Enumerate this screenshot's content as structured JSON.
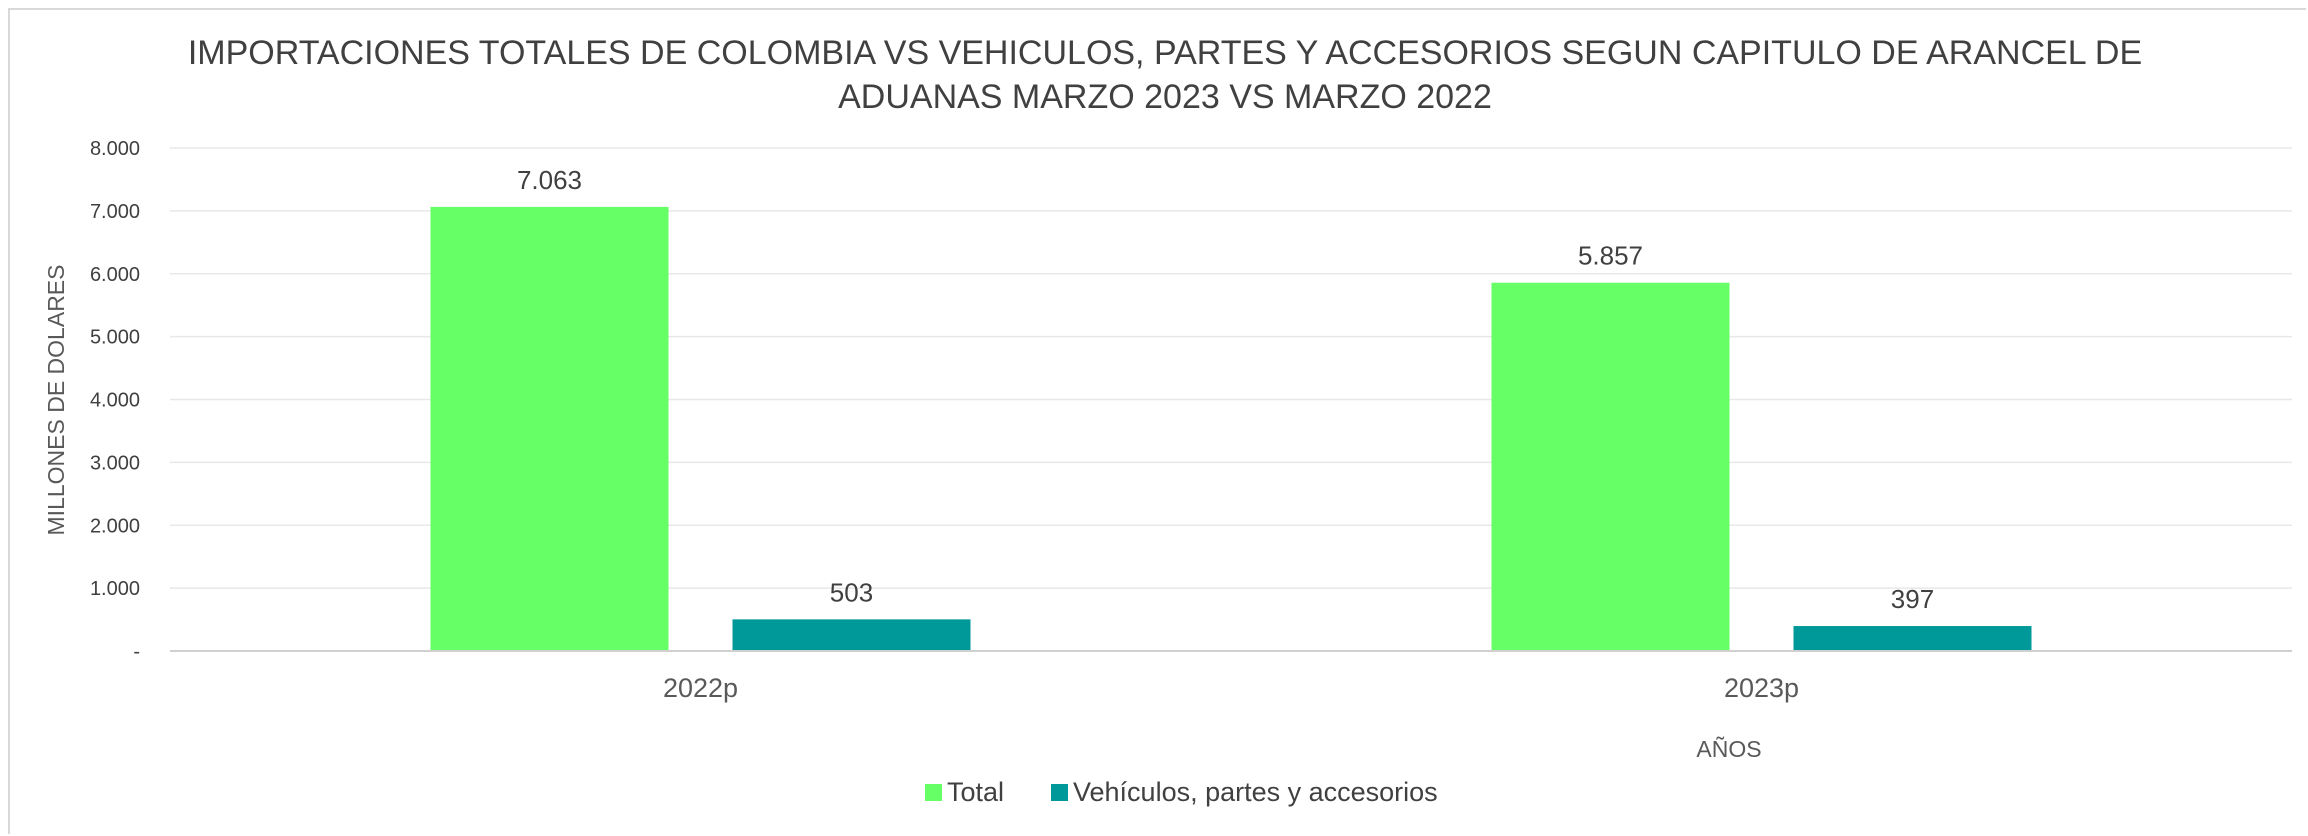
{
  "chart_data": {
    "type": "bar",
    "title_lines": [
      "IMPORTACIONES TOTALES DE COLOMBIA VS VEHICULOS, PARTES Y ACCESORIOS SEGUN CAPITULO DE ARANCEL DE",
      "ADUANAS MARZO 2023 VS MARZO 2022"
    ],
    "xlabel": "AÑOS",
    "ylabel": "MILLONES DE DOLARES",
    "categories": [
      "2022p",
      "2023p"
    ],
    "series": [
      {
        "name": "Total",
        "color": "#66ff66",
        "values": [
          7063,
          5857
        ],
        "labels": [
          "7.063",
          "5.857"
        ]
      },
      {
        "name": "Vehículos, partes y accesorios",
        "color": "#009999",
        "values": [
          503,
          397
        ],
        "labels": [
          "503",
          "397"
        ]
      }
    ],
    "ylim": [
      0,
      8000
    ],
    "yticks": [
      0,
      1000,
      2000,
      3000,
      4000,
      5000,
      6000,
      7000,
      8000
    ],
    "ytick_labels": [
      "-",
      "1.000",
      "2.000",
      "3.000",
      "4.000",
      "5.000",
      "6.000",
      "7.000",
      "8.000"
    ],
    "grid": true,
    "legend_position": "bottom-center"
  }
}
